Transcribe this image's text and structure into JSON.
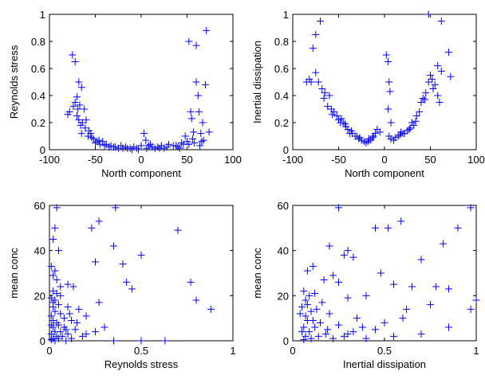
{
  "chart_data": [
    {
      "type": "scatter",
      "xlabel": "North component",
      "ylabel": "Reynolds stress",
      "xlim": [
        -100,
        100
      ],
      "ylim": [
        0,
        1
      ],
      "xticks": [
        "-100",
        "-50",
        "0",
        "50",
        "100"
      ],
      "yticks": [
        "0",
        "0.2",
        "0.4",
        "0.6",
        "0.8",
        "1"
      ],
      "marker": "+",
      "color": "#0000ff",
      "points": [
        [
          -75,
          0.7
        ],
        [
          -72,
          0.65
        ],
        [
          -70,
          0.39
        ],
        [
          -72,
          0.35
        ],
        [
          -68,
          0.5
        ],
        [
          -65,
          0.46
        ],
        [
          -70,
          0.25
        ],
        [
          -68,
          0.22
        ],
        [
          -66,
          0.18
        ],
        [
          -65,
          0.12
        ],
        [
          -62,
          0.3
        ],
        [
          -60,
          0.22
        ],
        [
          -58,
          0.1
        ],
        [
          -55,
          0.12
        ],
        [
          -52,
          0.08
        ],
        [
          -50,
          0.05
        ],
        [
          -48,
          0.06
        ],
        [
          -45,
          0.04
        ],
        [
          -40,
          0.03
        ],
        [
          -35,
          0.02
        ],
        [
          -30,
          0.02
        ],
        [
          -25,
          0.01
        ],
        [
          -20,
          0.01
        ],
        [
          -15,
          0.01
        ],
        [
          -10,
          0.0
        ],
        [
          -5,
          0.01
        ],
        [
          0,
          0.03
        ],
        [
          3,
          0.12
        ],
        [
          5,
          0.07
        ],
        [
          8,
          0.03
        ],
        [
          12,
          0.02
        ],
        [
          15,
          0.01
        ],
        [
          18,
          0.02
        ],
        [
          22,
          0.03
        ],
        [
          25,
          0.01
        ],
        [
          30,
          0.04
        ],
        [
          35,
          0.03
        ],
        [
          40,
          0.02
        ],
        [
          44,
          0.05
        ],
        [
          46,
          0.04
        ],
        [
          48,
          0.1
        ],
        [
          50,
          0.06
        ],
        [
          52,
          0.04
        ],
        [
          54,
          0.28
        ],
        [
          55,
          0.23
        ],
        [
          57,
          0.13
        ],
        [
          58,
          0.05
        ],
        [
          60,
          0.5
        ],
        [
          62,
          0.4
        ],
        [
          63,
          0.28
        ],
        [
          65,
          0.12
        ],
        [
          66,
          0.06
        ],
        [
          68,
          0.07
        ],
        [
          70,
          0.48
        ],
        [
          71,
          0.88
        ],
        [
          74,
          0.13
        ],
        [
          52,
          0.8
        ],
        [
          60,
          0.77
        ],
        [
          -80,
          0.26
        ],
        [
          -78,
          0.28
        ],
        [
          -74,
          0.32
        ],
        [
          -69,
          0.3
        ],
        [
          -67,
          0.33
        ],
        [
          -64,
          0.2
        ],
        [
          -61,
          0.16
        ],
        [
          -57,
          0.14
        ],
        [
          -54,
          0.09
        ],
        [
          -46,
          0.07
        ],
        [
          -42,
          0.06
        ],
        [
          -38,
          0.04
        ],
        [
          -33,
          0.03
        ],
        [
          -28,
          0.02
        ],
        [
          -22,
          0.03
        ],
        [
          -17,
          0.02
        ],
        [
          -12,
          0.01
        ],
        [
          -8,
          0.02
        ],
        [
          -3,
          0.0
        ],
        [
          6,
          0.01
        ],
        [
          10,
          0.04
        ],
        [
          20,
          0.01
        ],
        [
          28,
          0.02
        ],
        [
          38,
          0.03
        ],
        [
          42,
          0.01
        ],
        [
          56,
          0.08
        ],
        [
          64,
          0.03
        ],
        [
          67,
          0.2
        ]
      ]
    },
    {
      "type": "scatter",
      "xlabel": "North component",
      "ylabel": "Inertial dissipation",
      "xlim": [
        -100,
        100
      ],
      "ylim": [
        0,
        1
      ],
      "xticks": [
        "-100",
        "-50",
        "0",
        "50",
        "100"
      ],
      "yticks": [
        "0",
        "0.2",
        "0.4",
        "0.6",
        "0.8",
        "1"
      ],
      "marker": "+",
      "color": "#0000ff",
      "points": [
        [
          -70,
          0.95
        ],
        [
          -75,
          0.85
        ],
        [
          -78,
          0.75
        ],
        [
          -85,
          0.5
        ],
        [
          -80,
          0.5
        ],
        [
          -75,
          0.57
        ],
        [
          -72,
          0.5
        ],
        [
          -68,
          0.45
        ],
        [
          -65,
          0.42
        ],
        [
          -60,
          0.4
        ],
        [
          -62,
          0.32
        ],
        [
          -58,
          0.3
        ],
        [
          -55,
          0.28
        ],
        [
          -52,
          0.25
        ],
        [
          -50,
          0.22
        ],
        [
          -48,
          0.2
        ],
        [
          -45,
          0.2
        ],
        [
          -42,
          0.17
        ],
        [
          -40,
          0.15
        ],
        [
          -38,
          0.12
        ],
        [
          -35,
          0.12
        ],
        [
          -32,
          0.1
        ],
        [
          -30,
          0.1
        ],
        [
          -28,
          0.08
        ],
        [
          -25,
          0.07
        ],
        [
          -22,
          0.06
        ],
        [
          -20,
          0.05
        ],
        [
          -18,
          0.06
        ],
        [
          -15,
          0.07
        ],
        [
          -12,
          0.1
        ],
        [
          -10,
          0.12
        ],
        [
          -8,
          0.15
        ],
        [
          -5,
          0.13
        ],
        [
          2,
          0.7
        ],
        [
          4,
          0.65
        ],
        [
          5,
          0.5
        ],
        [
          4,
          0.3
        ],
        [
          5,
          0.1
        ],
        [
          7,
          0.08
        ],
        [
          10,
          0.07
        ],
        [
          15,
          0.1
        ],
        [
          18,
          0.13
        ],
        [
          20,
          0.12
        ],
        [
          22,
          0.12
        ],
        [
          25,
          0.14
        ],
        [
          28,
          0.16
        ],
        [
          30,
          0.2
        ],
        [
          32,
          0.18
        ],
        [
          35,
          0.25
        ],
        [
          38,
          0.28
        ],
        [
          40,
          0.35
        ],
        [
          42,
          0.38
        ],
        [
          45,
          0.42
        ],
        [
          48,
          0.5
        ],
        [
          50,
          0.55
        ],
        [
          52,
          0.52
        ],
        [
          55,
          0.48
        ],
        [
          58,
          0.4
        ],
        [
          60,
          0.35
        ],
        [
          62,
          0.58
        ],
        [
          62,
          0.95
        ],
        [
          48,
          1.0
        ],
        [
          70,
          0.72
        ],
        [
          72,
          0.54
        ],
        [
          -82,
          0.52
        ],
        [
          -66,
          0.38
        ],
        [
          -57,
          0.26
        ],
        [
          -47,
          0.23
        ],
        [
          -43,
          0.19
        ],
        [
          -36,
          0.14
        ],
        [
          -27,
          0.09
        ],
        [
          -17,
          0.08
        ],
        [
          -13,
          0.09
        ],
        [
          12,
          0.09
        ],
        [
          17,
          0.11
        ],
        [
          27,
          0.15
        ],
        [
          34,
          0.21
        ],
        [
          44,
          0.37
        ],
        [
          53,
          0.45
        ],
        [
          58,
          0.62
        ],
        [
          6,
          0.43
        ],
        [
          7,
          0.2
        ]
      ]
    },
    {
      "type": "scatter",
      "xlabel": "Reynolds stress",
      "ylabel": "mean conc",
      "xlim": [
        0,
        1
      ],
      "ylim": [
        0,
        60
      ],
      "xticks": [
        "0",
        "0.5",
        "1"
      ],
      "yticks": [
        "0",
        "20",
        "40",
        "60"
      ],
      "marker": "+",
      "color": "#0000ff",
      "points": [
        [
          0.04,
          59
        ],
        [
          0.36,
          59
        ],
        [
          0.27,
          53
        ],
        [
          0.23,
          50
        ],
        [
          0.03,
          50
        ],
        [
          0.7,
          49
        ],
        [
          0.02,
          45
        ],
        [
          0.35,
          42
        ],
        [
          0.05,
          40
        ],
        [
          0.5,
          38
        ],
        [
          0.25,
          35
        ],
        [
          0.4,
          34
        ],
        [
          0.01,
          33
        ],
        [
          0.03,
          31
        ],
        [
          0.02,
          29
        ],
        [
          0.04,
          27
        ],
        [
          0.42,
          26
        ],
        [
          0.77,
          26
        ],
        [
          0.1,
          25
        ],
        [
          0.13,
          24
        ],
        [
          0.45,
          23
        ],
        [
          0.02,
          22
        ],
        [
          0.04,
          21
        ],
        [
          0.06,
          20
        ],
        [
          0.01,
          19
        ],
        [
          0.03,
          18
        ],
        [
          0.8,
          18
        ],
        [
          0.27,
          17
        ],
        [
          0.05,
          16
        ],
        [
          0.02,
          15
        ],
        [
          0.1,
          15
        ],
        [
          0.88,
          14
        ],
        [
          0.16,
          14
        ],
        [
          0.03,
          13
        ],
        [
          0.06,
          12
        ],
        [
          0.01,
          11
        ],
        [
          0.2,
          11
        ],
        [
          0.08,
          10
        ],
        [
          0.12,
          9
        ],
        [
          0.02,
          9
        ],
        [
          0.04,
          8
        ],
        [
          0.15,
          8
        ],
        [
          0.01,
          7
        ],
        [
          0.05,
          7
        ],
        [
          0.3,
          6
        ],
        [
          0.02,
          6
        ],
        [
          0.09,
          5
        ],
        [
          0.14,
          5
        ],
        [
          0.03,
          4
        ],
        [
          0.06,
          4
        ],
        [
          0.1,
          3
        ],
        [
          0.01,
          3
        ],
        [
          0.2,
          3
        ],
        [
          0.04,
          2
        ],
        [
          0.07,
          2
        ],
        [
          0.02,
          1
        ],
        [
          0.05,
          1
        ],
        [
          0.01,
          0.5
        ],
        [
          0.12,
          1
        ],
        [
          0.5,
          0
        ],
        [
          0.63,
          0
        ],
        [
          0.35,
          0
        ],
        [
          0.03,
          0
        ],
        [
          0.09,
          0
        ],
        [
          0.18,
          2
        ],
        [
          0.25,
          4
        ],
        [
          0.08,
          6
        ],
        [
          0.11,
          12
        ],
        [
          0.02,
          17
        ],
        [
          0.06,
          24
        ]
      ]
    },
    {
      "type": "scatter",
      "xlabel": "Inertial dissipation",
      "ylabel": "mean conc",
      "xlim": [
        0,
        1
      ],
      "ylim": [
        0,
        60
      ],
      "xticks": [
        "0",
        "0.5",
        "1"
      ],
      "yticks": [
        "0",
        "20",
        "40",
        "60"
      ],
      "marker": "+",
      "color": "#0000ff",
      "points": [
        [
          0.25,
          59
        ],
        [
          0.97,
          59
        ],
        [
          0.59,
          53
        ],
        [
          0.45,
          50
        ],
        [
          0.52,
          50
        ],
        [
          0.9,
          50
        ],
        [
          0.82,
          43
        ],
        [
          0.2,
          42
        ],
        [
          0.3,
          40
        ],
        [
          0.28,
          38
        ],
        [
          0.33,
          37
        ],
        [
          0.7,
          36
        ],
        [
          0.11,
          33
        ],
        [
          0.08,
          31
        ],
        [
          0.48,
          30
        ],
        [
          0.22,
          29
        ],
        [
          0.17,
          27
        ],
        [
          0.25,
          26
        ],
        [
          0.55,
          25
        ],
        [
          0.65,
          24
        ],
        [
          0.78,
          24
        ],
        [
          0.85,
          23
        ],
        [
          0.06,
          22
        ],
        [
          0.12,
          21
        ],
        [
          0.09,
          20
        ],
        [
          0.4,
          20
        ],
        [
          0.3,
          19
        ],
        [
          0.07,
          18
        ],
        [
          0.16,
          17
        ],
        [
          0.75,
          16
        ],
        [
          0.05,
          15
        ],
        [
          0.13,
          14
        ],
        [
          0.1,
          13
        ],
        [
          0.97,
          14
        ],
        [
          0.2,
          12
        ],
        [
          0.07,
          11
        ],
        [
          0.35,
          10
        ],
        [
          0.6,
          10
        ],
        [
          0.08,
          9
        ],
        [
          0.15,
          8
        ],
        [
          0.25,
          7
        ],
        [
          0.06,
          6
        ],
        [
          0.12,
          6
        ],
        [
          0.45,
          5
        ],
        [
          0.05,
          4
        ],
        [
          0.09,
          4
        ],
        [
          0.18,
          3
        ],
        [
          0.3,
          3
        ],
        [
          0.07,
          2
        ],
        [
          0.14,
          2
        ],
        [
          0.22,
          1
        ],
        [
          0.4,
          1
        ],
        [
          0.55,
          2
        ],
        [
          0.7,
          3
        ],
        [
          0.85,
          6
        ],
        [
          1.0,
          18
        ],
        [
          0.06,
          0.5
        ],
        [
          0.1,
          1
        ],
        [
          0.33,
          4
        ],
        [
          0.5,
          8
        ],
        [
          0.62,
          14
        ],
        [
          0.38,
          6
        ],
        [
          0.28,
          2
        ],
        [
          0.19,
          5
        ],
        [
          0.11,
          9
        ],
        [
          0.04,
          12
        ],
        [
          0.08,
          16
        ]
      ]
    }
  ]
}
